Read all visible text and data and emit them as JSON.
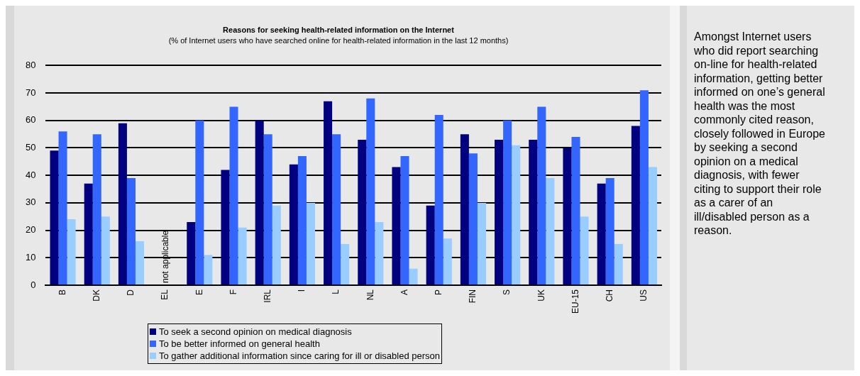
{
  "chart_data": {
    "type": "bar",
    "title": "Reasons for seeking health-related information on the Internet",
    "subtitle": "(% of Internet users who have searched online for health-related information in the last 12 months)",
    "categories": [
      "B",
      "DK",
      "D",
      "EL",
      "E",
      "F",
      "IRL",
      "I",
      "L",
      "NL",
      "A",
      "P",
      "FIN",
      "S",
      "UK",
      "EU-15",
      "CH",
      "US"
    ],
    "series": [
      {
        "name": "To seek a second opinion on medical diagnosis",
        "color": "#000080",
        "values": [
          49,
          37,
          59,
          null,
          23,
          42,
          60,
          44,
          67,
          53,
          43,
          29,
          55,
          53,
          53,
          50,
          37,
          58
        ]
      },
      {
        "name": "To be better informed on general health",
        "color": "#3366ff",
        "values": [
          56,
          55,
          39,
          null,
          60,
          65,
          55,
          47,
          55,
          68,
          47,
          62,
          48,
          60,
          65,
          54,
          39,
          71
        ]
      },
      {
        "name": "To gather additional information since caring for ill or disabled person",
        "color": "#99ccff",
        "values": [
          24,
          25,
          16,
          null,
          11,
          21,
          29,
          30,
          15,
          23,
          6,
          17,
          30,
          51,
          39,
          25,
          15,
          43
        ]
      }
    ],
    "ylim": [
      0,
      80
    ],
    "yticks": [
      0,
      10,
      20,
      30,
      40,
      50,
      60,
      70,
      80
    ],
    "grid": "y",
    "legend": "bottom",
    "annotations": [
      "not applicable",
      "Amongst Internet users who did report searching on-line for health-related information, getting better informed on one’s general health was the most commonly cited reason, closely followed in Europe by seeking a second opinion on a medical diagnosis, with fewer citing to support their role as a carer of an ill/disabled person as a reason."
    ]
  }
}
